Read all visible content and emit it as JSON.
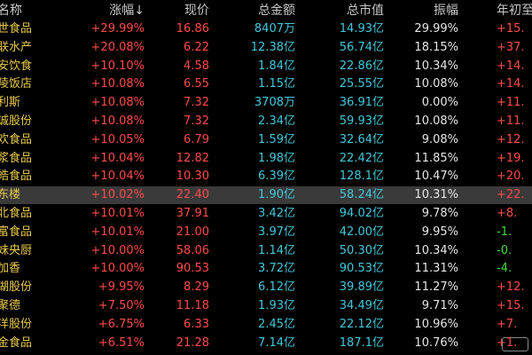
{
  "header": {
    "columns": [
      "名称",
      "涨幅↓",
      "现价",
      "总金额",
      "总市值",
      "振幅",
      "年初至"
    ]
  },
  "table": {
    "selected_row": 9,
    "rows": [
      [
        "世食品",
        "+29.99%",
        "16.86",
        "8407万",
        "14.93亿",
        "29.99%",
        "+15."
      ],
      [
        "联水产",
        "+20.08%",
        "6.22",
        "12.38亿",
        "56.74亿",
        "18.15%",
        "+37."
      ],
      [
        "安饮食",
        "+10.10%",
        "4.58",
        "1.84亿",
        "22.86亿",
        "10.34%",
        "+14."
      ],
      [
        "陵饭店",
        "+10.08%",
        "6.55",
        "1.15亿",
        "25.55亿",
        "10.08%",
        "+14."
      ],
      [
        "利斯",
        "+10.08%",
        "7.32",
        "3708万",
        "36.91亿",
        "0.00%",
        "+11."
      ],
      [
        "诚股份",
        "+10.08%",
        "7.32",
        "2.34亿",
        "59.93亿",
        "10.08%",
        "+11."
      ],
      [
        "欢食品",
        "+10.05%",
        "6.79",
        "1.59亿",
        "32.64亿",
        "9.08%",
        "+12."
      ],
      [
        "浆食品",
        "+10.04%",
        "12.82",
        "1.98亿",
        "22.42亿",
        "11.85%",
        "+19."
      ],
      [
        "皓食品",
        "+10.04%",
        "10.30",
        "6.39亿",
        "128.1亿",
        "10.47%",
        "+20."
      ],
      [
        "东楼",
        "+10.02%",
        "22.40",
        "1.90亿",
        "58.24亿",
        "10.31%",
        "+22."
      ],
      [
        "北食品",
        "+10.01%",
        "37.91",
        "3.42亿",
        "94.02亿",
        "9.78%",
        "+8."
      ],
      [
        "富食品",
        "+10.01%",
        "21.00",
        "3.97亿",
        "42.00亿",
        "9.95%",
        "-1."
      ],
      [
        "妹央厨",
        "+10.00%",
        "58.06",
        "1.14亿",
        "50.30亿",
        "10.34%",
        "-0."
      ],
      [
        "加香",
        "+10.00%",
        "90.53",
        "3.72亿",
        "90.53亿",
        "11.31%",
        "-4."
      ],
      [
        "湖股份",
        "+9.95%",
        "8.29",
        "6.12亿",
        "39.89亿",
        "11.27%",
        "+12."
      ],
      [
        "聚德",
        "+7.50%",
        "11.18",
        "1.93亿",
        "34.49亿",
        "9.71%",
        "+15."
      ],
      [
        "洋股份",
        "+6.75%",
        "6.33",
        "2.45亿",
        "22.12亿",
        "10.96%",
        "+7."
      ],
      [
        "金食品",
        "+6.51%",
        "21.28",
        "7.14亿",
        "187.1亿",
        "10.76%",
        "+1."
      ]
    ]
  }
}
